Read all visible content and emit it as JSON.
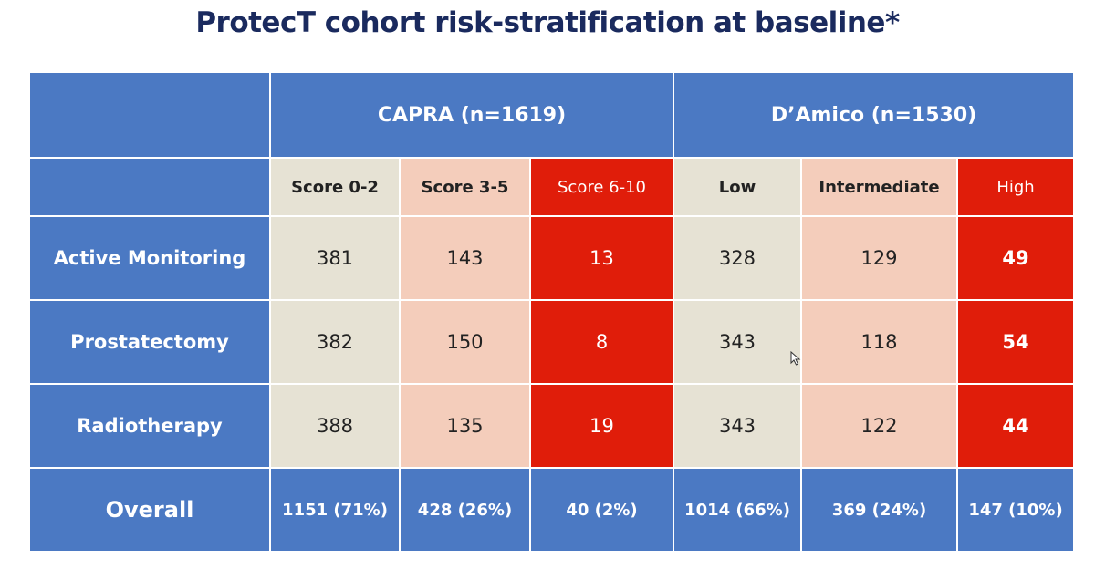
{
  "title": "ProtecT cohort risk-stratification at baseline*",
  "groups": {
    "capra": "CAPRA (n=1619)",
    "damico": "D’Amico (n=1530)"
  },
  "subheaders": [
    "Score 0-2",
    "Score 3-5",
    "Score 6-10",
    "Low",
    "Intermediate",
    "High"
  ],
  "rows": [
    {
      "label": "Active Monitoring",
      "values": [
        "381",
        "143",
        "13",
        "328",
        "129",
        "49"
      ]
    },
    {
      "label": "Prostatectomy",
      "values": [
        "382",
        "150",
        "8",
        "343",
        "118",
        "54"
      ]
    },
    {
      "label": "Radiotherapy",
      "values": [
        "388",
        "135",
        "19",
        "343",
        "122",
        "44"
      ]
    }
  ],
  "overall": {
    "label": "Overall",
    "values": [
      "1151 (71%)",
      "428 (26%)",
      "40 (2%)",
      "1014 (66%)",
      "369 (24%)",
      "147 (10%)"
    ]
  },
  "colors": {
    "title": "#1a2a5e",
    "header_blue": "#4b79c3",
    "low_beige": "#e6e2d4",
    "mid_peach": "#f4cdbb",
    "high_red": "#e01d0a"
  }
}
